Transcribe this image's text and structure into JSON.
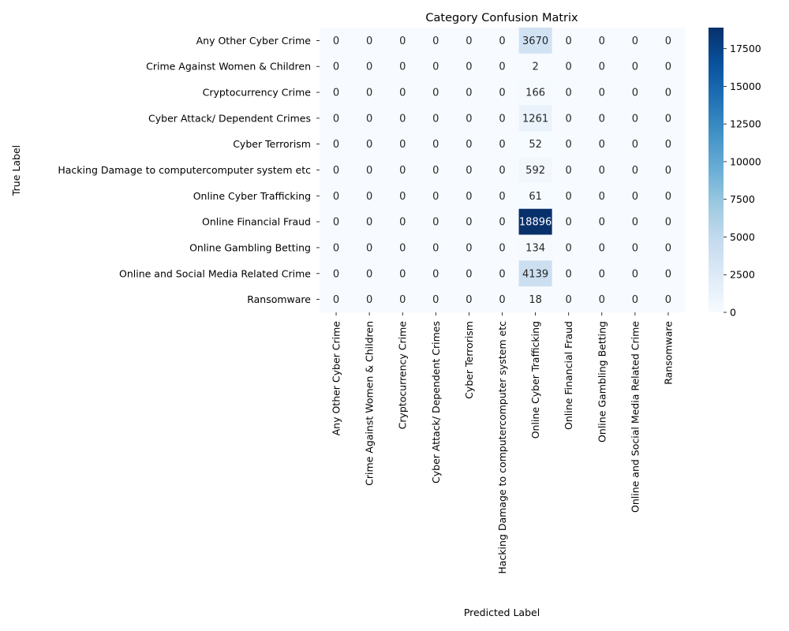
{
  "chart_data": {
    "type": "heatmap",
    "title": "Category Confusion Matrix",
    "xlabel": "Predicted Label",
    "ylabel": "True Label",
    "labels": [
      "Any Other Cyber Crime",
      "Crime Against Women & Children",
      "Cryptocurrency Crime",
      "Cyber Attack/ Dependent Crimes",
      "Cyber Terrorism",
      "Hacking  Damage to computercomputer system etc",
      "Online Cyber Trafficking",
      "Online Financial Fraud",
      "Online Gambling  Betting",
      "Online and Social Media Related Crime",
      "Ransomware"
    ],
    "matrix": [
      [
        0,
        0,
        0,
        0,
        0,
        0,
        3670,
        0,
        0,
        0,
        0
      ],
      [
        0,
        0,
        0,
        0,
        0,
        0,
        2,
        0,
        0,
        0,
        0
      ],
      [
        0,
        0,
        0,
        0,
        0,
        0,
        166,
        0,
        0,
        0,
        0
      ],
      [
        0,
        0,
        0,
        0,
        0,
        0,
        1261,
        0,
        0,
        0,
        0
      ],
      [
        0,
        0,
        0,
        0,
        0,
        0,
        52,
        0,
        0,
        0,
        0
      ],
      [
        0,
        0,
        0,
        0,
        0,
        0,
        592,
        0,
        0,
        0,
        0
      ],
      [
        0,
        0,
        0,
        0,
        0,
        0,
        61,
        0,
        0,
        0,
        0
      ],
      [
        0,
        0,
        0,
        0,
        0,
        0,
        18896,
        0,
        0,
        0,
        0
      ],
      [
        0,
        0,
        0,
        0,
        0,
        0,
        134,
        0,
        0,
        0,
        0
      ],
      [
        0,
        0,
        0,
        0,
        0,
        0,
        4139,
        0,
        0,
        0,
        0
      ],
      [
        0,
        0,
        0,
        0,
        0,
        0,
        18,
        0,
        0,
        0,
        0
      ]
    ],
    "colormap": "Blues",
    "colors": {
      "low": "#f7fbff",
      "high": "#08306b"
    },
    "colorbar": {
      "range": [
        0,
        18896
      ],
      "ticks": [
        0,
        2500,
        5000,
        7500,
        10000,
        12500,
        15000,
        17500
      ]
    },
    "grid": false
  }
}
